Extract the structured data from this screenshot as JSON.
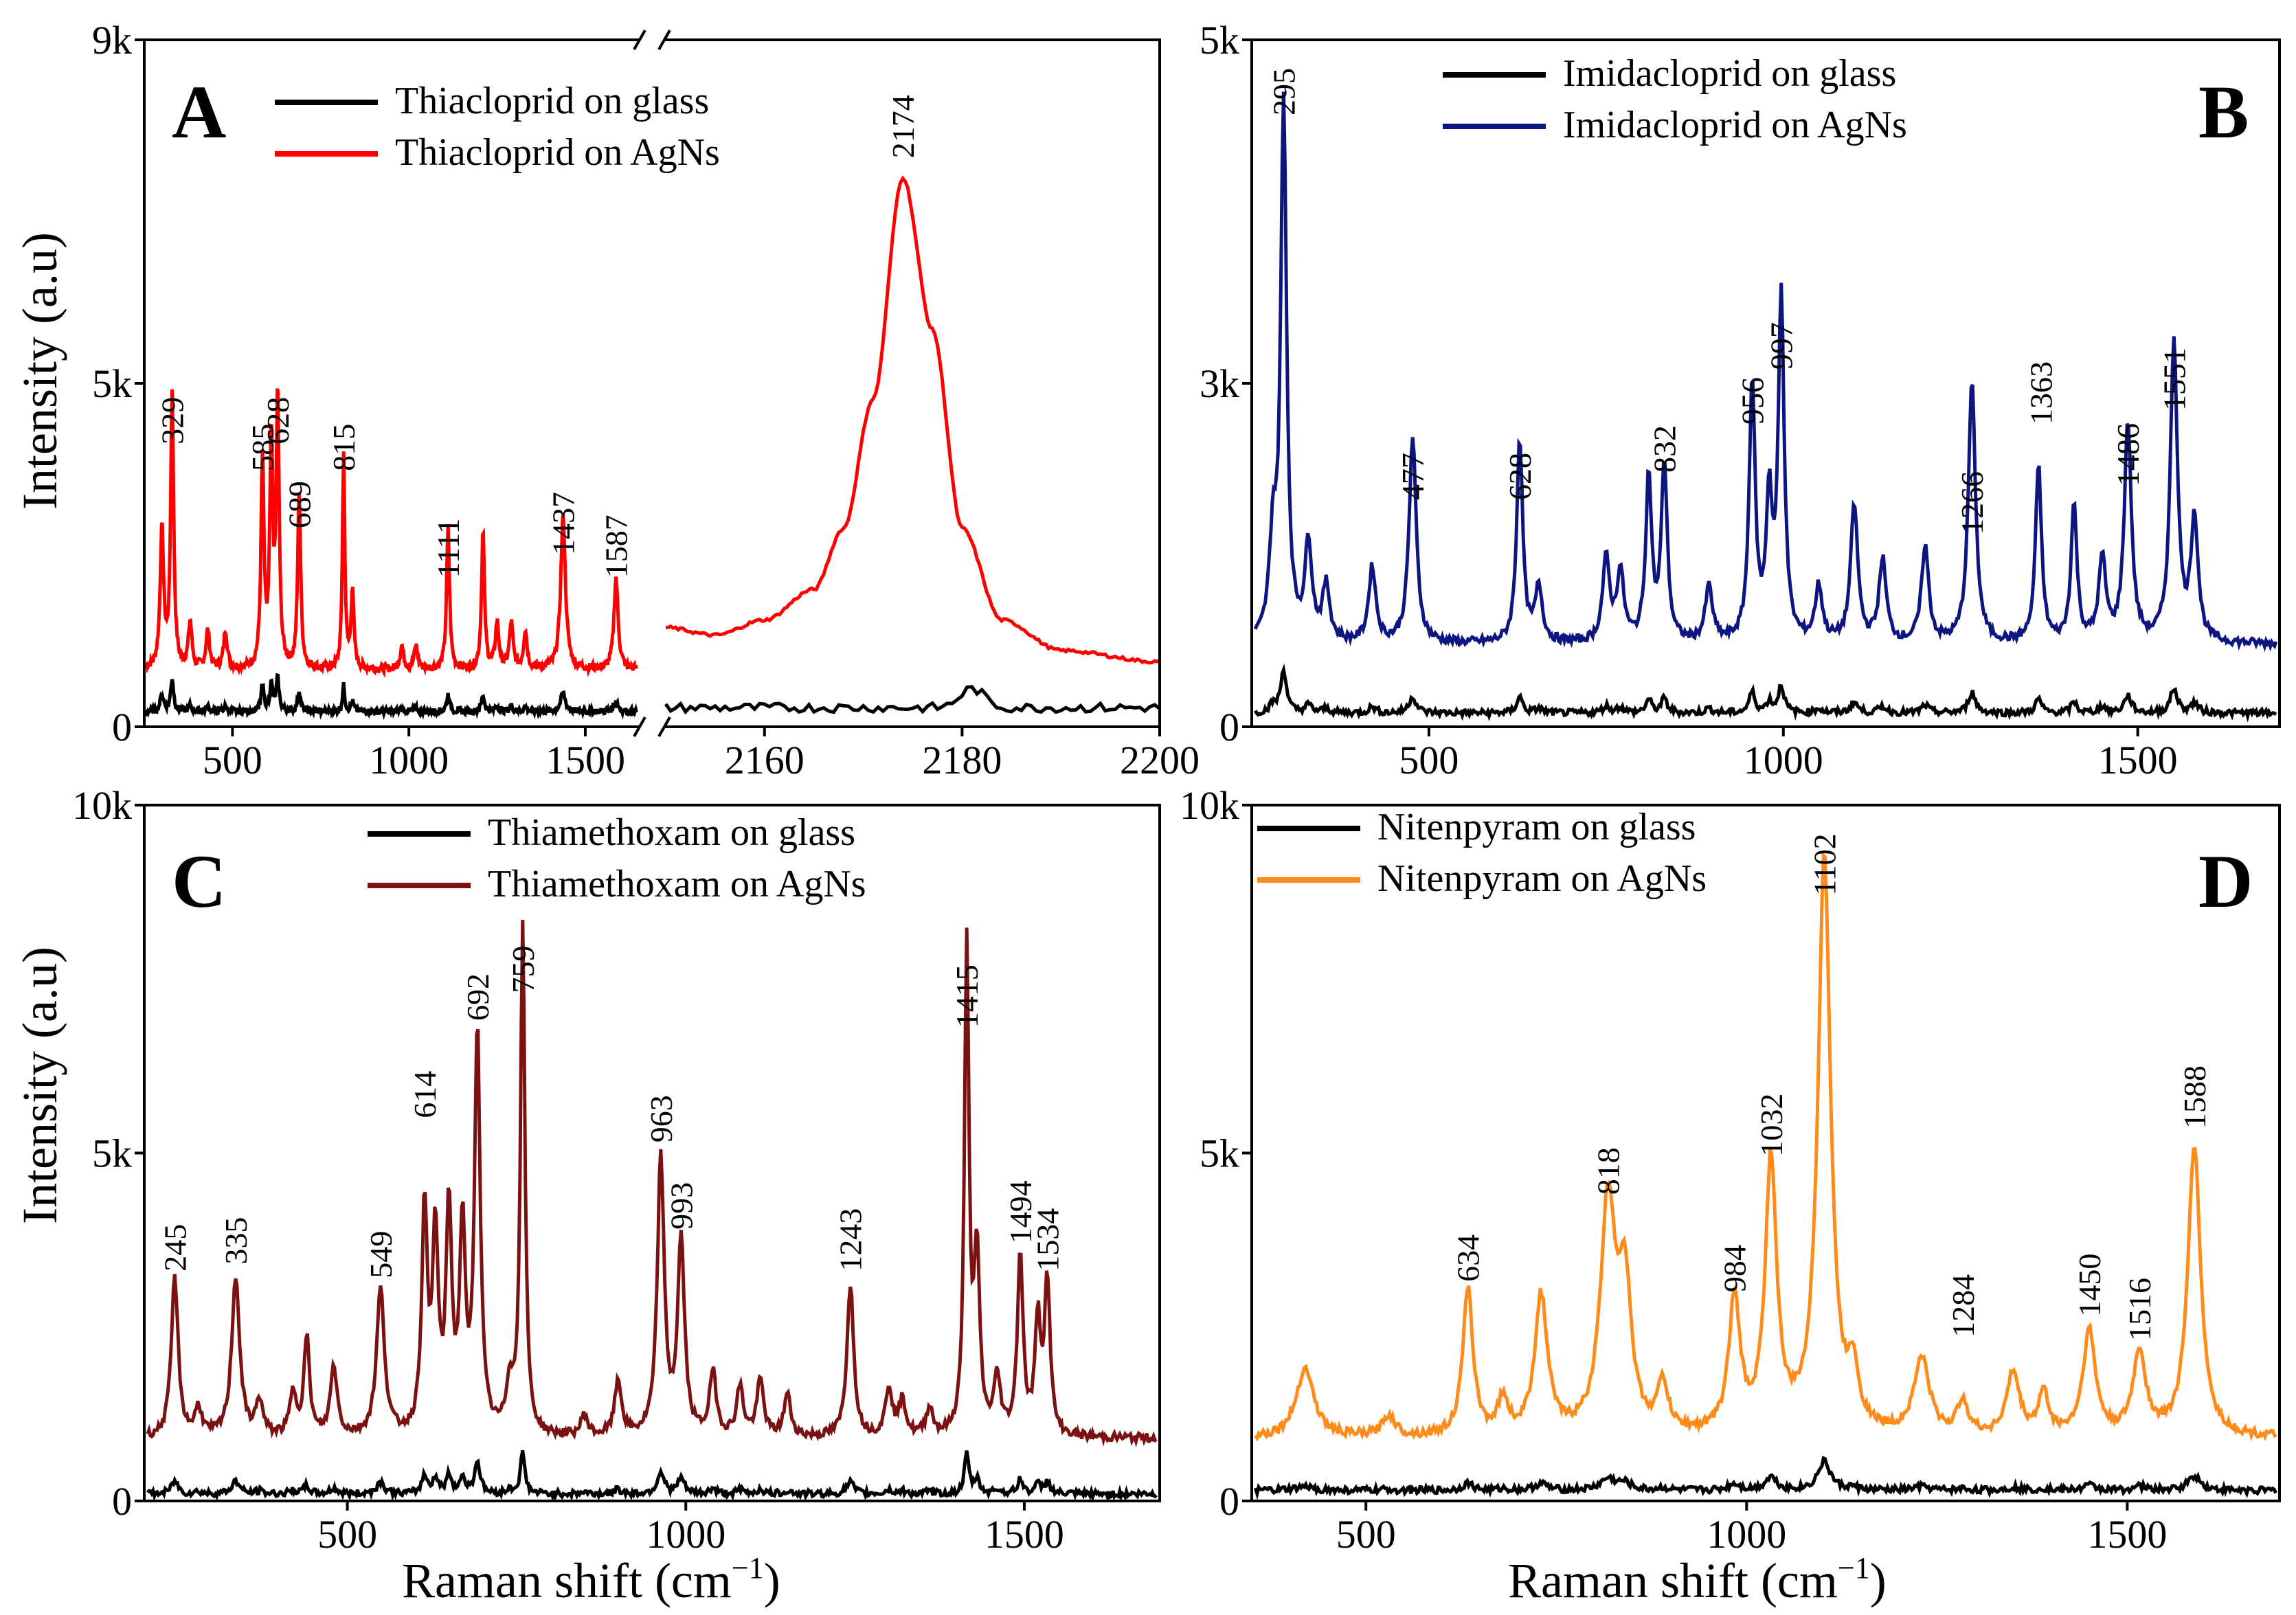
{
  "figure": {
    "xlabel_main": "Raman shift (cm",
    "xlabel_sup": "−1",
    "xlabel_close": ")",
    "ylabel": "Intensity (a.u)"
  },
  "chart_data": [
    {
      "panel": "A",
      "type": "line",
      "broken_axis": true,
      "xlim_left": [
        250,
        1650
      ],
      "xlim_right": [
        2150,
        2200
      ],
      "ylim": [
        0,
        9000
      ],
      "xticks_left": [
        500,
        1000,
        1500
      ],
      "xticks_right": [
        2160,
        2180,
        2200
      ],
      "xtick_labels": [
        "500",
        "1000",
        "1500",
        "2160",
        "2180",
        "2200"
      ],
      "yticks": [
        0,
        4500,
        9000
      ],
      "ytick_labels": [
        "0",
        "5k",
        "9k"
      ],
      "ylabel": "Intensity (a.u)",
      "series": [
        {
          "name": "Thiacloprid on glass",
          "color": "#000000",
          "baseline": 200,
          "peak_scale": 0.12
        },
        {
          "name": "Thiacloprid on AgNs",
          "color": "#ff0000",
          "baseline": 750,
          "peaks": [
            [
              300,
              1800,
              6
            ],
            [
              329,
              3600,
              5
            ],
            [
              380,
              600,
              6
            ],
            [
              430,
              500,
              6
            ],
            [
              480,
              500,
              6
            ],
            [
              585,
              2700,
              5
            ],
            [
              610,
              2900,
              5
            ],
            [
              628,
              3500,
              5
            ],
            [
              689,
              2300,
              5
            ],
            [
              815,
              2800,
              4
            ],
            [
              840,
              1000,
              5
            ],
            [
              980,
              300,
              6
            ],
            [
              1020,
              300,
              6
            ],
            [
              1111,
              1850,
              5
            ],
            [
              1210,
              1800,
              5
            ],
            [
              1250,
              600,
              6
            ],
            [
              1290,
              600,
              6
            ],
            [
              1330,
              500,
              6
            ],
            [
              1437,
              2000,
              8
            ],
            [
              1587,
              1200,
              7
            ]
          ],
          "right_curve": [
            [
              2150,
              1300
            ],
            [
              2155,
              1200
            ],
            [
              2160,
              1400
            ],
            [
              2165,
              1800
            ],
            [
              2168,
              2600
            ],
            [
              2171,
              4300
            ],
            [
              2174,
              7200
            ],
            [
              2177,
              5200
            ],
            [
              2180,
              2600
            ],
            [
              2184,
              1400
            ],
            [
              2190,
              1000
            ],
            [
              2200,
              850
            ]
          ]
        }
      ],
      "peak_labels": [
        "329",
        "585",
        "628",
        "689",
        "815",
        "1111",
        "1437",
        "1587",
        "2174"
      ],
      "peak_positions": [
        329,
        585,
        628,
        689,
        815,
        1111,
        1437,
        1587,
        2174
      ],
      "peak_label_values": [
        3700,
        3350,
        3700,
        2600,
        3350,
        1950,
        2250,
        1950,
        7450
      ]
    },
    {
      "panel": "B",
      "type": "line",
      "xlim": [
        250,
        1700
      ],
      "ylim": [
        0,
        5000
      ],
      "xticks": [
        500,
        1000,
        1500
      ],
      "xtick_labels": [
        "500",
        "1000",
        "1500"
      ],
      "yticks": [
        0,
        2500,
        5000
      ],
      "ytick_labels": [
        "0",
        "3k",
        "5k"
      ],
      "series": [
        {
          "name": "Imidacloprid on glass",
          "color": "#000000",
          "baseline": 100,
          "peak_scale": 0.08
        },
        {
          "name": "Imidacloprid on AgNs",
          "color": "#0d1580",
          "baseline": 600,
          "peaks": [
            [
              280,
              700,
              6
            ],
            [
              295,
              3900,
              5
            ],
            [
              330,
              700,
              6
            ],
            [
              355,
              400,
              6
            ],
            [
              420,
              550,
              6
            ],
            [
              477,
              1500,
              6
            ],
            [
              628,
              1500,
              5
            ],
            [
              655,
              400,
              6
            ],
            [
              750,
              600,
              6
            ],
            [
              770,
              500,
              6
            ],
            [
              810,
              1200,
              5
            ],
            [
              832,
              1300,
              5
            ],
            [
              895,
              400,
              6
            ],
            [
              956,
              1900,
              5
            ],
            [
              980,
              1000,
              5
            ],
            [
              997,
              2500,
              5
            ],
            [
              1050,
              400,
              6
            ],
            [
              1100,
              1000,
              6
            ],
            [
              1140,
              600,
              6
            ],
            [
              1200,
              700,
              6
            ],
            [
              1266,
              1900,
              6
            ],
            [
              1360,
              1300,
              5
            ],
            [
              1410,
              1000,
              5
            ],
            [
              1450,
              600,
              6
            ],
            [
              1486,
              1600,
              6
            ],
            [
              1551,
              2200,
              6
            ],
            [
              1580,
              900,
              6
            ]
          ]
        }
      ],
      "peak_labels": [
        "295",
        "477",
        "628",
        "832",
        "956",
        "997",
        "1266",
        "1363",
        "1486",
        "1551"
      ],
      "peak_positions": [
        295,
        477,
        628,
        832,
        956,
        997,
        1266,
        1363,
        1486,
        1551
      ],
      "peak_label_values": [
        4450,
        1650,
        1650,
        1850,
        2200,
        2600,
        1400,
        2200,
        1750,
        2300
      ]
    },
    {
      "panel": "C",
      "type": "line",
      "xlim": [
        200,
        1700
      ],
      "ylim": [
        0,
        10000
      ],
      "xticks": [
        500,
        1000,
        1500
      ],
      "xtick_labels": [
        "500",
        "1000",
        "1500"
      ],
      "yticks": [
        0,
        5000,
        10000
      ],
      "ytick_labels": [
        "0",
        "5k",
        "10k"
      ],
      "ylabel": "Intensity (a.u)",
      "series": [
        {
          "name": "Thiamethoxam on glass",
          "color": "#000000",
          "baseline": 100,
          "peak_scale": 0.08
        },
        {
          "name": "Thiamethoxam on AgNs",
          "color": "#7b1111",
          "baseline": 900,
          "peaks": [
            [
              245,
              2300,
              6
            ],
            [
              280,
              400,
              6
            ],
            [
              335,
              2300,
              7
            ],
            [
              370,
              500,
              6
            ],
            [
              420,
              600,
              6
            ],
            [
              440,
              1400,
              5
            ],
            [
              480,
              1000,
              6
            ],
            [
              549,
              2100,
              7
            ],
            [
              614,
              3200,
              5
            ],
            [
              630,
              2800,
              5
            ],
            [
              650,
              3200,
              5
            ],
            [
              670,
              2900,
              5
            ],
            [
              692,
              5800,
              5
            ],
            [
              740,
              700,
              6
            ],
            [
              759,
              7300,
              4
            ],
            [
              850,
              300,
              6
            ],
            [
              900,
              800,
              6
            ],
            [
              963,
              4000,
              6
            ],
            [
              993,
              2800,
              6
            ],
            [
              1040,
              900,
              6
            ],
            [
              1080,
              700,
              6
            ],
            [
              1110,
              800,
              6
            ],
            [
              1150,
              600,
              6
            ],
            [
              1243,
              2200,
              6
            ],
            [
              1300,
              700,
              6
            ],
            [
              1320,
              500,
              6
            ],
            [
              1360,
              400,
              6
            ],
            [
              1415,
              7000,
              4
            ],
            [
              1430,
              2500,
              5
            ],
            [
              1460,
              800,
              6
            ],
            [
              1494,
              2600,
              5
            ],
            [
              1520,
              1600,
              5
            ],
            [
              1534,
              2200,
              5
            ]
          ]
        }
      ],
      "peak_labels": [
        "245",
        "335",
        "549",
        "614",
        "692",
        "759",
        "963",
        "993",
        "1243",
        "1415",
        "1494",
        "1534"
      ],
      "peak_positions": [
        245,
        335,
        549,
        614,
        692,
        759,
        963,
        993,
        1243,
        1415,
        1494,
        1534
      ],
      "peak_label_values": [
        3300,
        3400,
        3200,
        5500,
        6900,
        7300,
        5150,
        3900,
        3300,
        6800,
        3700,
        3300
      ]
    },
    {
      "panel": "D",
      "type": "line",
      "xlim": [
        350,
        1700
      ],
      "ylim": [
        0,
        10000
      ],
      "xticks": [
        500,
        1000,
        1500
      ],
      "xtick_labels": [
        "500",
        "1000",
        "1500"
      ],
      "yticks": [
        0,
        5000,
        10000
      ],
      "ytick_labels": [
        "0",
        "5k",
        "10k"
      ],
      "series": [
        {
          "name": "Nitenpyram on glass",
          "color": "#000000",
          "baseline": 150,
          "peak_scale": 0.05
        },
        {
          "name": "Nitenpyram on AgNs",
          "color": "#ff8c1a",
          "baseline": 900,
          "peaks": [
            [
              420,
              1000,
              14
            ],
            [
              530,
              300,
              10
            ],
            [
              634,
              2100,
              8
            ],
            [
              680,
              500,
              8
            ],
            [
              730,
              2000,
              10
            ],
            [
              818,
              3300,
              12
            ],
            [
              840,
              2000,
              10
            ],
            [
              890,
              700,
              8
            ],
            [
              984,
              1900,
              9
            ],
            [
              1032,
              3900,
              9
            ],
            [
              1102,
              8300,
              10
            ],
            [
              1140,
              800,
              8
            ],
            [
              1230,
              1100,
              12
            ],
            [
              1284,
              500,
              8
            ],
            [
              1350,
              900,
              10
            ],
            [
              1390,
              600,
              8
            ],
            [
              1450,
              1500,
              10
            ],
            [
              1516,
              1200,
              10
            ],
            [
              1588,
              4200,
              10
            ]
          ]
        }
      ],
      "peak_labels": [
        "634",
        "818",
        "984",
        "1032",
        "1102",
        "1284",
        "1450",
        "1516",
        "1588"
      ],
      "peak_positions": [
        634,
        818,
        984,
        1032,
        1102,
        1284,
        1450,
        1516,
        1588
      ],
      "peak_label_values": [
        3150,
        4400,
        3000,
        4950,
        8700,
        2350,
        2650,
        2300,
        5350
      ]
    }
  ]
}
